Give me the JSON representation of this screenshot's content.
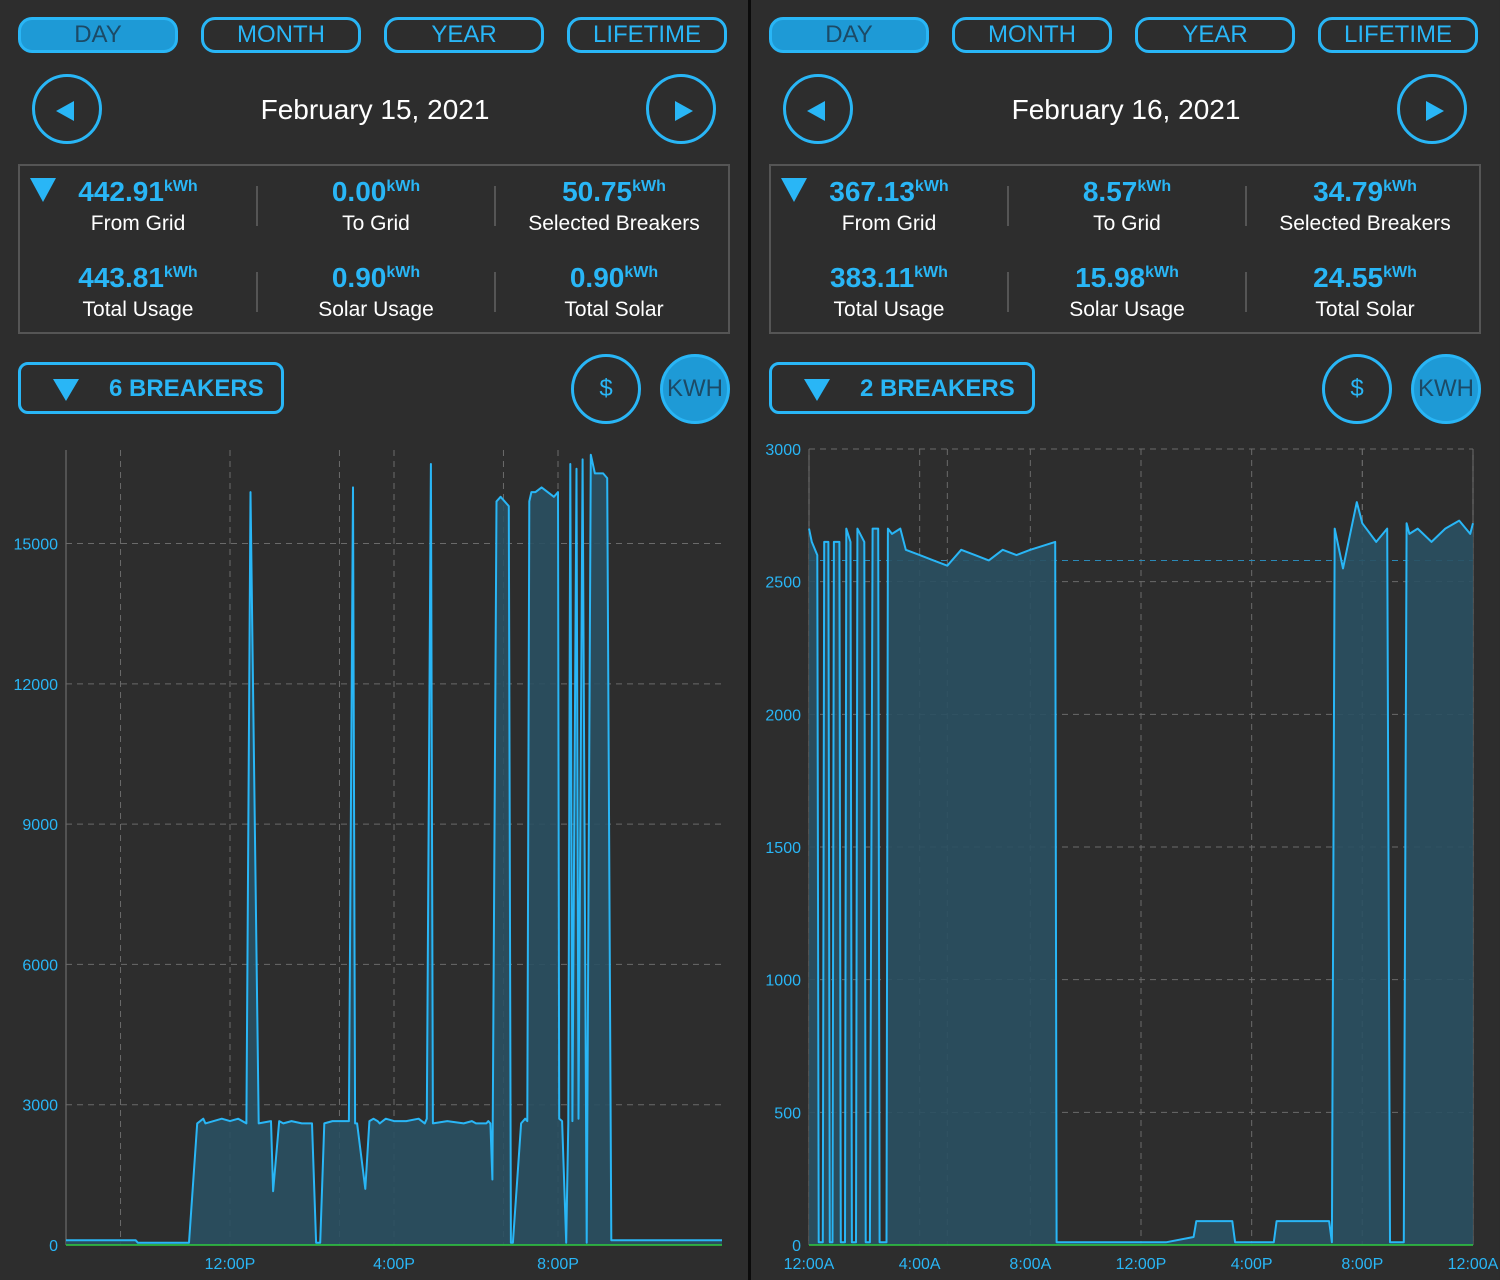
{
  "colors": {
    "accent": "#29b6f6",
    "fill": "#2a5062",
    "background": "#2d2d2d",
    "baseline": "#2ecc40"
  },
  "panels": [
    {
      "tabs": [
        "DAY",
        "MONTH",
        "YEAR",
        "LIFETIME"
      ],
      "active_tab": "DAY",
      "date": "February 15, 2021",
      "stats": [
        {
          "value": "442.91",
          "unit": "kWh",
          "label": "From Grid"
        },
        {
          "value": "0.00",
          "unit": "kWh",
          "label": "To Grid"
        },
        {
          "value": "50.75",
          "unit": "kWh",
          "label": "Selected Breakers"
        },
        {
          "value": "443.81",
          "unit": "kWh",
          "label": "Total Usage"
        },
        {
          "value": "0.90",
          "unit": "kWh",
          "label": "Solar Usage"
        },
        {
          "value": "0.90",
          "unit": "kWh",
          "label": "Total Solar"
        }
      ],
      "breakers_label": "6 BREAKERS",
      "dollar_label": "$",
      "kwh_label": "KWH",
      "chart_data": {
        "type": "area",
        "ylim": [
          0,
          17000
        ],
        "yticks": [
          0,
          3000,
          6000,
          9000,
          12000,
          15000
        ],
        "xlim": [
          8,
          24
        ],
        "xticks": [
          {
            "value": 12,
            "label": "12:00P"
          },
          {
            "value": 16,
            "label": "4:00P"
          },
          {
            "value": 20,
            "label": "8:00P"
          }
        ],
        "vlines": [
          9.33,
          12,
          14.67,
          16,
          18.67,
          20
        ],
        "x": [
          8,
          9.7,
          9.75,
          10.7,
          11,
          11.2,
          11.35,
          11.4,
          11.8,
          12,
          12.2,
          12.4,
          12.5,
          12.7,
          13.0,
          13.05,
          13.2,
          13.3,
          13.5,
          13.75,
          14,
          14.1,
          14.2,
          14.3,
          14.5,
          14.9,
          15.0,
          15.05,
          15.1,
          15.3,
          15.4,
          15.5,
          15.6,
          15.65,
          15.8,
          16,
          16.3,
          16.6,
          16.75,
          16.8,
          16.9,
          16.95,
          17.3,
          17.7,
          17.9,
          18,
          18.25,
          18.3,
          18.35,
          18.4,
          18.5,
          18.6,
          18.8,
          18.85,
          18.9,
          19.1,
          19.2,
          19.25,
          19.3,
          19.35,
          19.45,
          19.6,
          19.9,
          20,
          20.03,
          20.1,
          20.2,
          20.25,
          20.3,
          20.35,
          20.45,
          20.5,
          20.6,
          20.7,
          20.8,
          20.9,
          21.1,
          21.2,
          21.3,
          24
        ],
        "y": [
          100,
          100,
          50,
          50,
          50,
          2600,
          2700,
          2600,
          2700,
          2650,
          2700,
          2600,
          16100,
          2600,
          2650,
          1150,
          2650,
          2600,
          2650,
          2600,
          2600,
          50,
          50,
          2600,
          2650,
          2650,
          16200,
          2600,
          2600,
          1200,
          2650,
          2700,
          2650,
          2600,
          2700,
          2650,
          2650,
          2700,
          2600,
          2700,
          16700,
          2600,
          2650,
          2600,
          2650,
          2600,
          2600,
          2650,
          2600,
          1400,
          15900,
          16000,
          15800,
          50,
          50,
          2600,
          2700,
          2650,
          15900,
          16100,
          16100,
          16200,
          16000,
          16100,
          2700,
          2650,
          50,
          2600,
          16700,
          2650,
          16600,
          2700,
          16800,
          50,
          16900,
          16500,
          16500,
          16400,
          100,
          100
        ]
      }
    },
    {
      "tabs": [
        "DAY",
        "MONTH",
        "YEAR",
        "LIFETIME"
      ],
      "active_tab": "DAY",
      "date": "February 16, 2021",
      "stats": [
        {
          "value": "367.13",
          "unit": "kWh",
          "label": "From Grid"
        },
        {
          "value": "8.57",
          "unit": "kWh",
          "label": "To Grid"
        },
        {
          "value": "34.79",
          "unit": "kWh",
          "label": "Selected Breakers"
        },
        {
          "value": "383.11",
          "unit": "kWh",
          "label": "Total Usage"
        },
        {
          "value": "15.98",
          "unit": "kWh",
          "label": "Solar Usage"
        },
        {
          "value": "24.55",
          "unit": "kWh",
          "label": "Total Solar"
        }
      ],
      "breakers_label": "2 BREAKERS",
      "dollar_label": "$",
      "kwh_label": "KWH",
      "chart_data": {
        "type": "area",
        "ylim": [
          0,
          3000
        ],
        "yticks": [
          0,
          500,
          1000,
          1500,
          2000,
          2500,
          3000
        ],
        "xlim": [
          0,
          24
        ],
        "xticks": [
          {
            "value": 0,
            "label": "12:00A"
          },
          {
            "value": 4,
            "label": "4:00A"
          },
          {
            "value": 8,
            "label": "8:00A"
          },
          {
            "value": 12,
            "label": "12:00P"
          },
          {
            "value": 16,
            "label": "4:00P"
          },
          {
            "value": 20,
            "label": "8:00P"
          },
          {
            "value": 24,
            "label": "12:00A"
          }
        ],
        "vlines": [
          5,
          20
        ],
        "hline": 2580,
        "x": [
          0,
          0.1,
          0.3,
          0.35,
          0.5,
          0.55,
          0.7,
          0.75,
          0.85,
          0.9,
          1.1,
          1.15,
          1.3,
          1.35,
          1.5,
          1.55,
          1.7,
          1.75,
          2.0,
          2.05,
          2.2,
          2.3,
          2.5,
          2.55,
          2.8,
          2.85,
          3.0,
          3.3,
          3.5,
          4.0,
          4.5,
          5.0,
          5.5,
          6.0,
          6.5,
          7.0,
          7.5,
          8.0,
          8.9,
          8.95,
          12,
          12.9,
          13.9,
          14.0,
          14.2,
          15.3,
          15.4,
          16.8,
          16.9,
          18.8,
          18.9,
          19.0,
          19.3,
          19.5,
          19.8,
          20.0,
          20.5,
          20.9,
          21.0,
          21.5,
          21.6,
          21.7,
          22.0,
          22.5,
          23.0,
          23.5,
          23.9,
          24
        ],
        "y": [
          2700,
          2650,
          2600,
          10,
          10,
          2650,
          2650,
          10,
          10,
          2650,
          2650,
          10,
          10,
          2700,
          2650,
          10,
          10,
          2700,
          2650,
          10,
          10,
          2700,
          2700,
          10,
          10,
          2700,
          2680,
          2700,
          2620,
          2600,
          2580,
          2560,
          2620,
          2600,
          2580,
          2620,
          2600,
          2620,
          2650,
          10,
          10,
          10,
          30,
          90,
          90,
          90,
          10,
          10,
          90,
          90,
          10,
          2700,
          2550,
          2650,
          2800,
          2720,
          2650,
          2700,
          10,
          10,
          2720,
          2680,
          2700,
          2650,
          2700,
          2730,
          2680,
          2720
        ]
      }
    }
  ]
}
